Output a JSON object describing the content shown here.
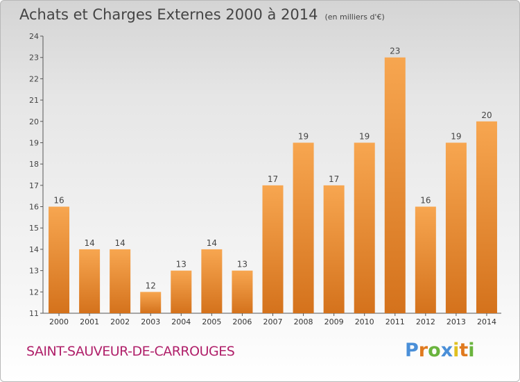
{
  "header": {
    "title": "Achats et Charges Externes 2000 à 2014",
    "subtitle": "(en milliers d'€)"
  },
  "footer": {
    "commune": "SAINT-SAUVEUR-DE-CARROUGES",
    "logo_text": "Proxiti"
  },
  "colors": {
    "bar_light": "#f7a650",
    "bar_dark": "#d4721c",
    "commune_text": "#b0206a"
  },
  "chart_data": {
    "type": "bar",
    "title": "Achats et Charges Externes 2000 à 2014",
    "subtitle": "(en milliers d'€)",
    "xlabel": "",
    "ylabel": "",
    "categories": [
      "2000",
      "2001",
      "2002",
      "2003",
      "2004",
      "2005",
      "2006",
      "2007",
      "2008",
      "2009",
      "2010",
      "2011",
      "2012",
      "2013",
      "2014"
    ],
    "values": [
      16,
      14,
      14,
      12,
      13,
      14,
      13,
      17,
      19,
      17,
      19,
      23,
      16,
      19,
      20
    ],
    "ylim": [
      11,
      24
    ],
    "yticks": [
      11,
      12,
      13,
      14,
      15,
      16,
      17,
      18,
      19,
      20,
      21,
      22,
      23,
      24
    ],
    "grid": false,
    "legend": "none"
  }
}
